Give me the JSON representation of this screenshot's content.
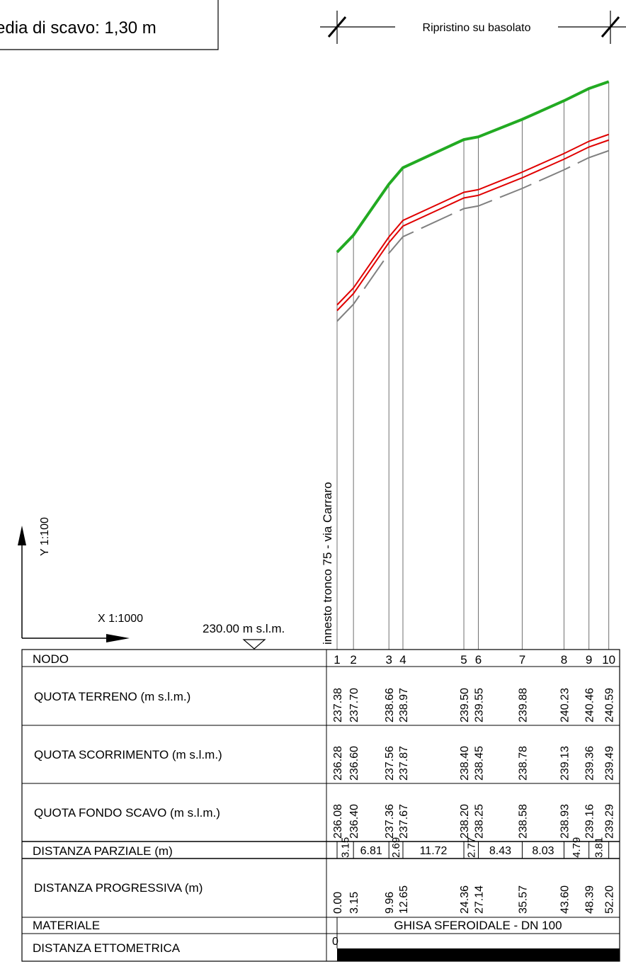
{
  "header": {
    "depth_note": "edia di scavo: 1,30 m",
    "resurface_label": "Ripristino su basolato"
  },
  "scales": {
    "vertical": "Y 1:100",
    "horizontal": "X 1:1000",
    "datum": "230.00 m s.l.m."
  },
  "start_annotation": "innesto tronco 75 - via Carraro",
  "table": {
    "row_labels": {
      "nodo": "NODO",
      "quota_terreno": "QUOTA TERRENO (m s.l.m.)",
      "quota_scorrimento": "QUOTA SCORRIMENTO (m s.l.m.)",
      "quota_fondo_scavo": "QUOTA FONDO SCAVO (m s.l.m.)",
      "distanza_parziale": "DISTANZA PARZIALE (m)",
      "distanza_progressiva": "DISTANZA PROGRESSIVA (m)",
      "materiale": "MATERIALE",
      "distanza_ettometrica": "DISTANZA ETTOMETRICA"
    },
    "material_value": "GHISA SFEROIDALE - DN 100",
    "ettometric_start": "0"
  },
  "nodes": [
    {
      "label": "1",
      "terreno": "237.38",
      "scorrimento": "236.28",
      "fondo": "236.08",
      "progressiva": "0.00"
    },
    {
      "label": "2",
      "terreno": "237.70",
      "scorrimento": "236.60",
      "fondo": "236.40",
      "progressiva": "3.15"
    },
    {
      "label": "3",
      "terreno": "238.66",
      "scorrimento": "237.56",
      "fondo": "237.36",
      "progressiva": "9.96"
    },
    {
      "label": "4",
      "terreno": "238.97",
      "scorrimento": "237.87",
      "fondo": "237.67",
      "progressiva": "12.65"
    },
    {
      "label": "5",
      "terreno": "239.50",
      "scorrimento": "238.40",
      "fondo": "238.20",
      "progressiva": "24.36"
    },
    {
      "label": "6",
      "terreno": "239.55",
      "scorrimento": "238.45",
      "fondo": "238.25",
      "progressiva": "27.14"
    },
    {
      "label": "7",
      "terreno": "239.88",
      "scorrimento": "238.78",
      "fondo": "238.58",
      "progressiva": "35.57"
    },
    {
      "label": "8",
      "terreno": "240.23",
      "scorrimento": "239.13",
      "fondo": "238.93",
      "progressiva": "43.60"
    },
    {
      "label": "9",
      "terreno": "240.46",
      "scorrimento": "239.36",
      "fondo": "239.16",
      "progressiva": "48.39"
    },
    {
      "label": "10",
      "terreno": "240.59",
      "scorrimento": "239.49",
      "fondo": "239.29",
      "progressiva": "52.20"
    }
  ],
  "partial_distances": [
    "3.15",
    "6.81",
    "2.69",
    "11.72",
    "2.77",
    "8.43",
    "8.03",
    "4.79",
    "3.81"
  ],
  "colors": {
    "ground_line": "#22aa22",
    "pipe_line": "#e00000",
    "trench_line": "#808080",
    "ink": "#000000"
  }
}
